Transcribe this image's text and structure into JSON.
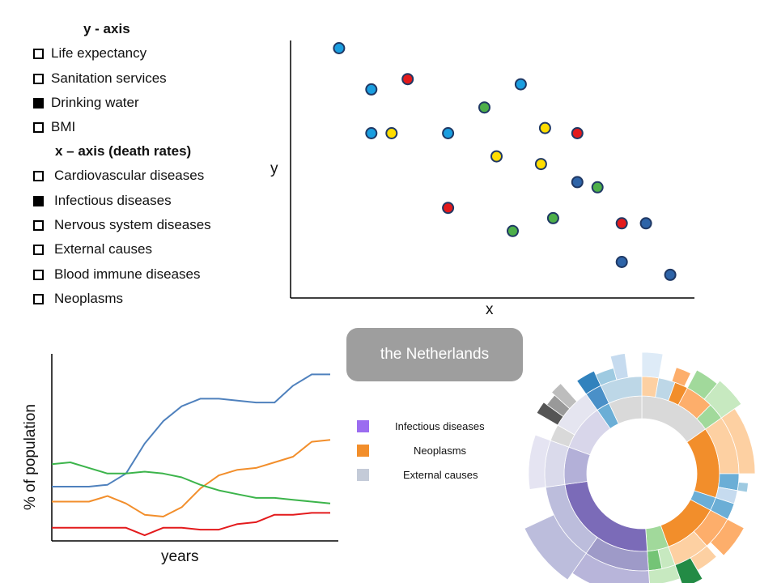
{
  "y_axis": {
    "title": "y - axis",
    "options": [
      {
        "label": "Life expectancy",
        "checked": false
      },
      {
        "label": "Sanitation services",
        "checked": false
      },
      {
        "label": "Drinking water",
        "checked": true
      },
      {
        "label": "BMI",
        "checked": false
      }
    ]
  },
  "x_axis": {
    "title": "x – axis (death rates)",
    "options": [
      {
        "label": "Cardiovascular diseases",
        "checked": false
      },
      {
        "label": "Infectious diseases",
        "checked": true
      },
      {
        "label": "Nervous system diseases",
        "checked": false
      },
      {
        "label": "External causes",
        "checked": false
      },
      {
        "label": "Blood immune diseases",
        "checked": false
      },
      {
        "label": "Neoplasms",
        "checked": false
      }
    ]
  },
  "country_button": {
    "label": "the Netherlands"
  },
  "legend": [
    {
      "label": "Infectious diseases",
      "color": "#9b6cf0"
    },
    {
      "label": "Neoplasms",
      "color": "#f28e2b"
    },
    {
      "label": "External causes",
      "color": "#c4cbd8"
    }
  ],
  "scatter": {
    "xlabel": "x",
    "ylabel": "y",
    "points": [
      {
        "x": 0.12,
        "y": 0.97,
        "color": "#1a9ee0"
      },
      {
        "x": 0.2,
        "y": 0.81,
        "color": "#1a9ee0"
      },
      {
        "x": 0.29,
        "y": 0.85,
        "color": "#e31a1c"
      },
      {
        "x": 0.57,
        "y": 0.83,
        "color": "#1a9ee0"
      },
      {
        "x": 0.48,
        "y": 0.74,
        "color": "#4daf4a"
      },
      {
        "x": 0.2,
        "y": 0.64,
        "color": "#1a9ee0"
      },
      {
        "x": 0.25,
        "y": 0.64,
        "color": "#ffdd00"
      },
      {
        "x": 0.39,
        "y": 0.64,
        "color": "#1a9ee0"
      },
      {
        "x": 0.63,
        "y": 0.66,
        "color": "#ffdd00"
      },
      {
        "x": 0.71,
        "y": 0.64,
        "color": "#e31a1c"
      },
      {
        "x": 0.51,
        "y": 0.55,
        "color": "#ffdd00"
      },
      {
        "x": 0.62,
        "y": 0.52,
        "color": "#ffdd00"
      },
      {
        "x": 0.71,
        "y": 0.45,
        "color": "#2e64a8"
      },
      {
        "x": 0.76,
        "y": 0.43,
        "color": "#4daf4a"
      },
      {
        "x": 0.39,
        "y": 0.35,
        "color": "#e31a1c"
      },
      {
        "x": 0.65,
        "y": 0.31,
        "color": "#4daf4a"
      },
      {
        "x": 0.55,
        "y": 0.26,
        "color": "#4daf4a"
      },
      {
        "x": 0.82,
        "y": 0.29,
        "color": "#e31a1c"
      },
      {
        "x": 0.88,
        "y": 0.29,
        "color": "#2e64a8"
      },
      {
        "x": 0.82,
        "y": 0.14,
        "color": "#2e64a8"
      },
      {
        "x": 0.94,
        "y": 0.09,
        "color": "#2e64a8"
      }
    ]
  },
  "linechart": {
    "xlabel": "years",
    "ylabel": "% of population",
    "series": [
      {
        "color": "#4f81bd",
        "values": [
          0.29,
          0.29,
          0.29,
          0.3,
          0.36,
          0.52,
          0.64,
          0.72,
          0.76,
          0.76,
          0.75,
          0.74,
          0.74,
          0.83,
          0.89,
          0.89
        ]
      },
      {
        "color": "#f28e2b",
        "values": [
          0.21,
          0.21,
          0.21,
          0.24,
          0.2,
          0.14,
          0.13,
          0.18,
          0.28,
          0.35,
          0.38,
          0.39,
          0.42,
          0.45,
          0.53,
          0.54
        ]
      },
      {
        "color": "#3cb44b",
        "values": [
          0.41,
          0.42,
          0.39,
          0.36,
          0.36,
          0.37,
          0.36,
          0.34,
          0.3,
          0.27,
          0.25,
          0.23,
          0.23,
          0.22,
          0.21,
          0.2
        ]
      },
      {
        "color": "#e31a1c",
        "values": [
          0.07,
          0.07,
          0.07,
          0.07,
          0.07,
          0.03,
          0.07,
          0.07,
          0.06,
          0.06,
          0.09,
          0.1,
          0.14,
          0.14,
          0.15,
          0.15
        ]
      }
    ]
  }
}
